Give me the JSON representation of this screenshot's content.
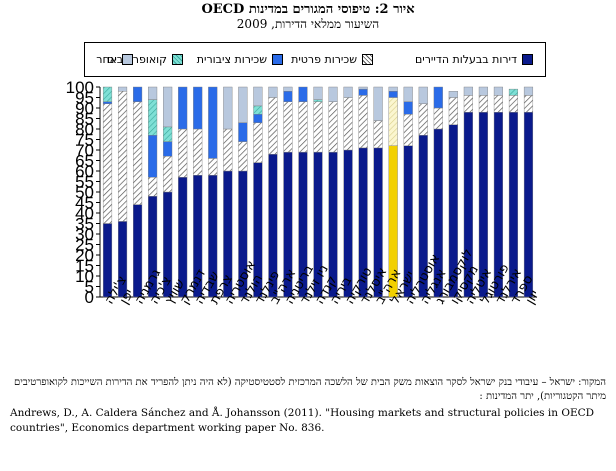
{
  "title": {
    "line1": "איור 2: טיפוסי המגורים במדינות OECD",
    "line2": "השיעור ממלאי הדירות, 2009"
  },
  "source": {
    "hebrew": "המקור: ישראל – עיבודי בנק ישראל לסקר הוצאות משק הבית של הלשכה המרכזית לסטטיסטיקה (לא היה ניתן להפריד את הדירות השייכות לקואופרטיבים מיתר הקטגוריות), יתר המדינות :",
    "english": "Andrews, D., A. Caldera Sánchez and Å. Johansson (2011). \"Housing markets and structural policies in OECD countries\", Economics department working paper No. 836."
  },
  "colors": {
    "owner": "#0a1a8c",
    "private_rent": "hatch",
    "social_rent": "#2a6be8",
    "cooperative": "#7fe0d6",
    "other": "#b8c8de",
    "israel_owner": "#f2d000",
    "israel_private_rent": "#f7f0b8"
  },
  "chart_data": {
    "type": "bar",
    "stacked": true,
    "ylim": [
      0,
      100
    ],
    "yticks": [
      0,
      5,
      10,
      15,
      20,
      25,
      30,
      35,
      40,
      45,
      50,
      55,
      60,
      65,
      70,
      75,
      80,
      85,
      90,
      95,
      100
    ],
    "legend_position": "top",
    "categories": [
      "צ'ילה",
      "יפן",
      "גרמניה",
      "צ'כיה",
      "שוויץ",
      "דנמרק",
      "שבדיה",
      "צרפת",
      "אוסטריה",
      "הולנד",
      "פינלנד",
      "ארה\"ב",
      "בריטניה",
      "ניו זילנד",
      "קנדה",
      "ביריה",
      "טורקיה",
      "איסלנד",
      "ארה\"ב",
      "ישראל",
      "אוסטרליה",
      "אנגליה",
      "לוקסמבורג",
      "מקסיקו",
      "איטליה",
      "פורטוגל",
      "אירלנד",
      "ספרד",
      "יוון"
    ],
    "highlight_category_index": 19,
    "series": [
      {
        "name": "דירות בבעלות הדיירים",
        "key": "owner",
        "values": [
          35,
          36,
          44,
          48,
          50,
          57,
          58,
          58,
          60,
          60,
          64,
          68,
          69,
          69,
          69,
          69,
          70,
          71,
          71,
          72,
          72,
          77,
          80,
          82,
          88,
          88,
          88,
          88,
          88
        ]
      },
      {
        "name": "שכירות פרטית",
        "key": "private_rent",
        "values": [
          57,
          62,
          49,
          9,
          17,
          23,
          22,
          8,
          20,
          14,
          19,
          27,
          24,
          24,
          24,
          24,
          25,
          25,
          13,
          23,
          15,
          15,
          10,
          13,
          8,
          8,
          8,
          8,
          8
        ]
      },
      {
        "name": "שכירות ציבורית",
        "key": "social_rent",
        "values": [
          1,
          0,
          7,
          20,
          7,
          20,
          20,
          34,
          0,
          9,
          4,
          0,
          5,
          7,
          0,
          0,
          0,
          3,
          0,
          3,
          6,
          0,
          10,
          0,
          0,
          0,
          0,
          0,
          0
        ]
      },
      {
        "name": "קואופרטיבים",
        "key": "cooperative",
        "values": [
          7,
          0,
          0,
          17,
          7,
          0,
          0,
          0,
          0,
          0,
          4,
          0,
          0,
          0,
          1,
          0,
          0,
          0,
          0,
          0,
          0,
          0,
          0,
          0,
          0,
          0,
          0,
          3,
          0
        ]
      },
      {
        "name": "אחר",
        "key": "other",
        "values": [
          0,
          2,
          0,
          6,
          19,
          0,
          0,
          0,
          20,
          17,
          9,
          5,
          2,
          0,
          6,
          7,
          5,
          1,
          16,
          2,
          7,
          8,
          0,
          3,
          4,
          4,
          4,
          0,
          4
        ]
      }
    ]
  }
}
